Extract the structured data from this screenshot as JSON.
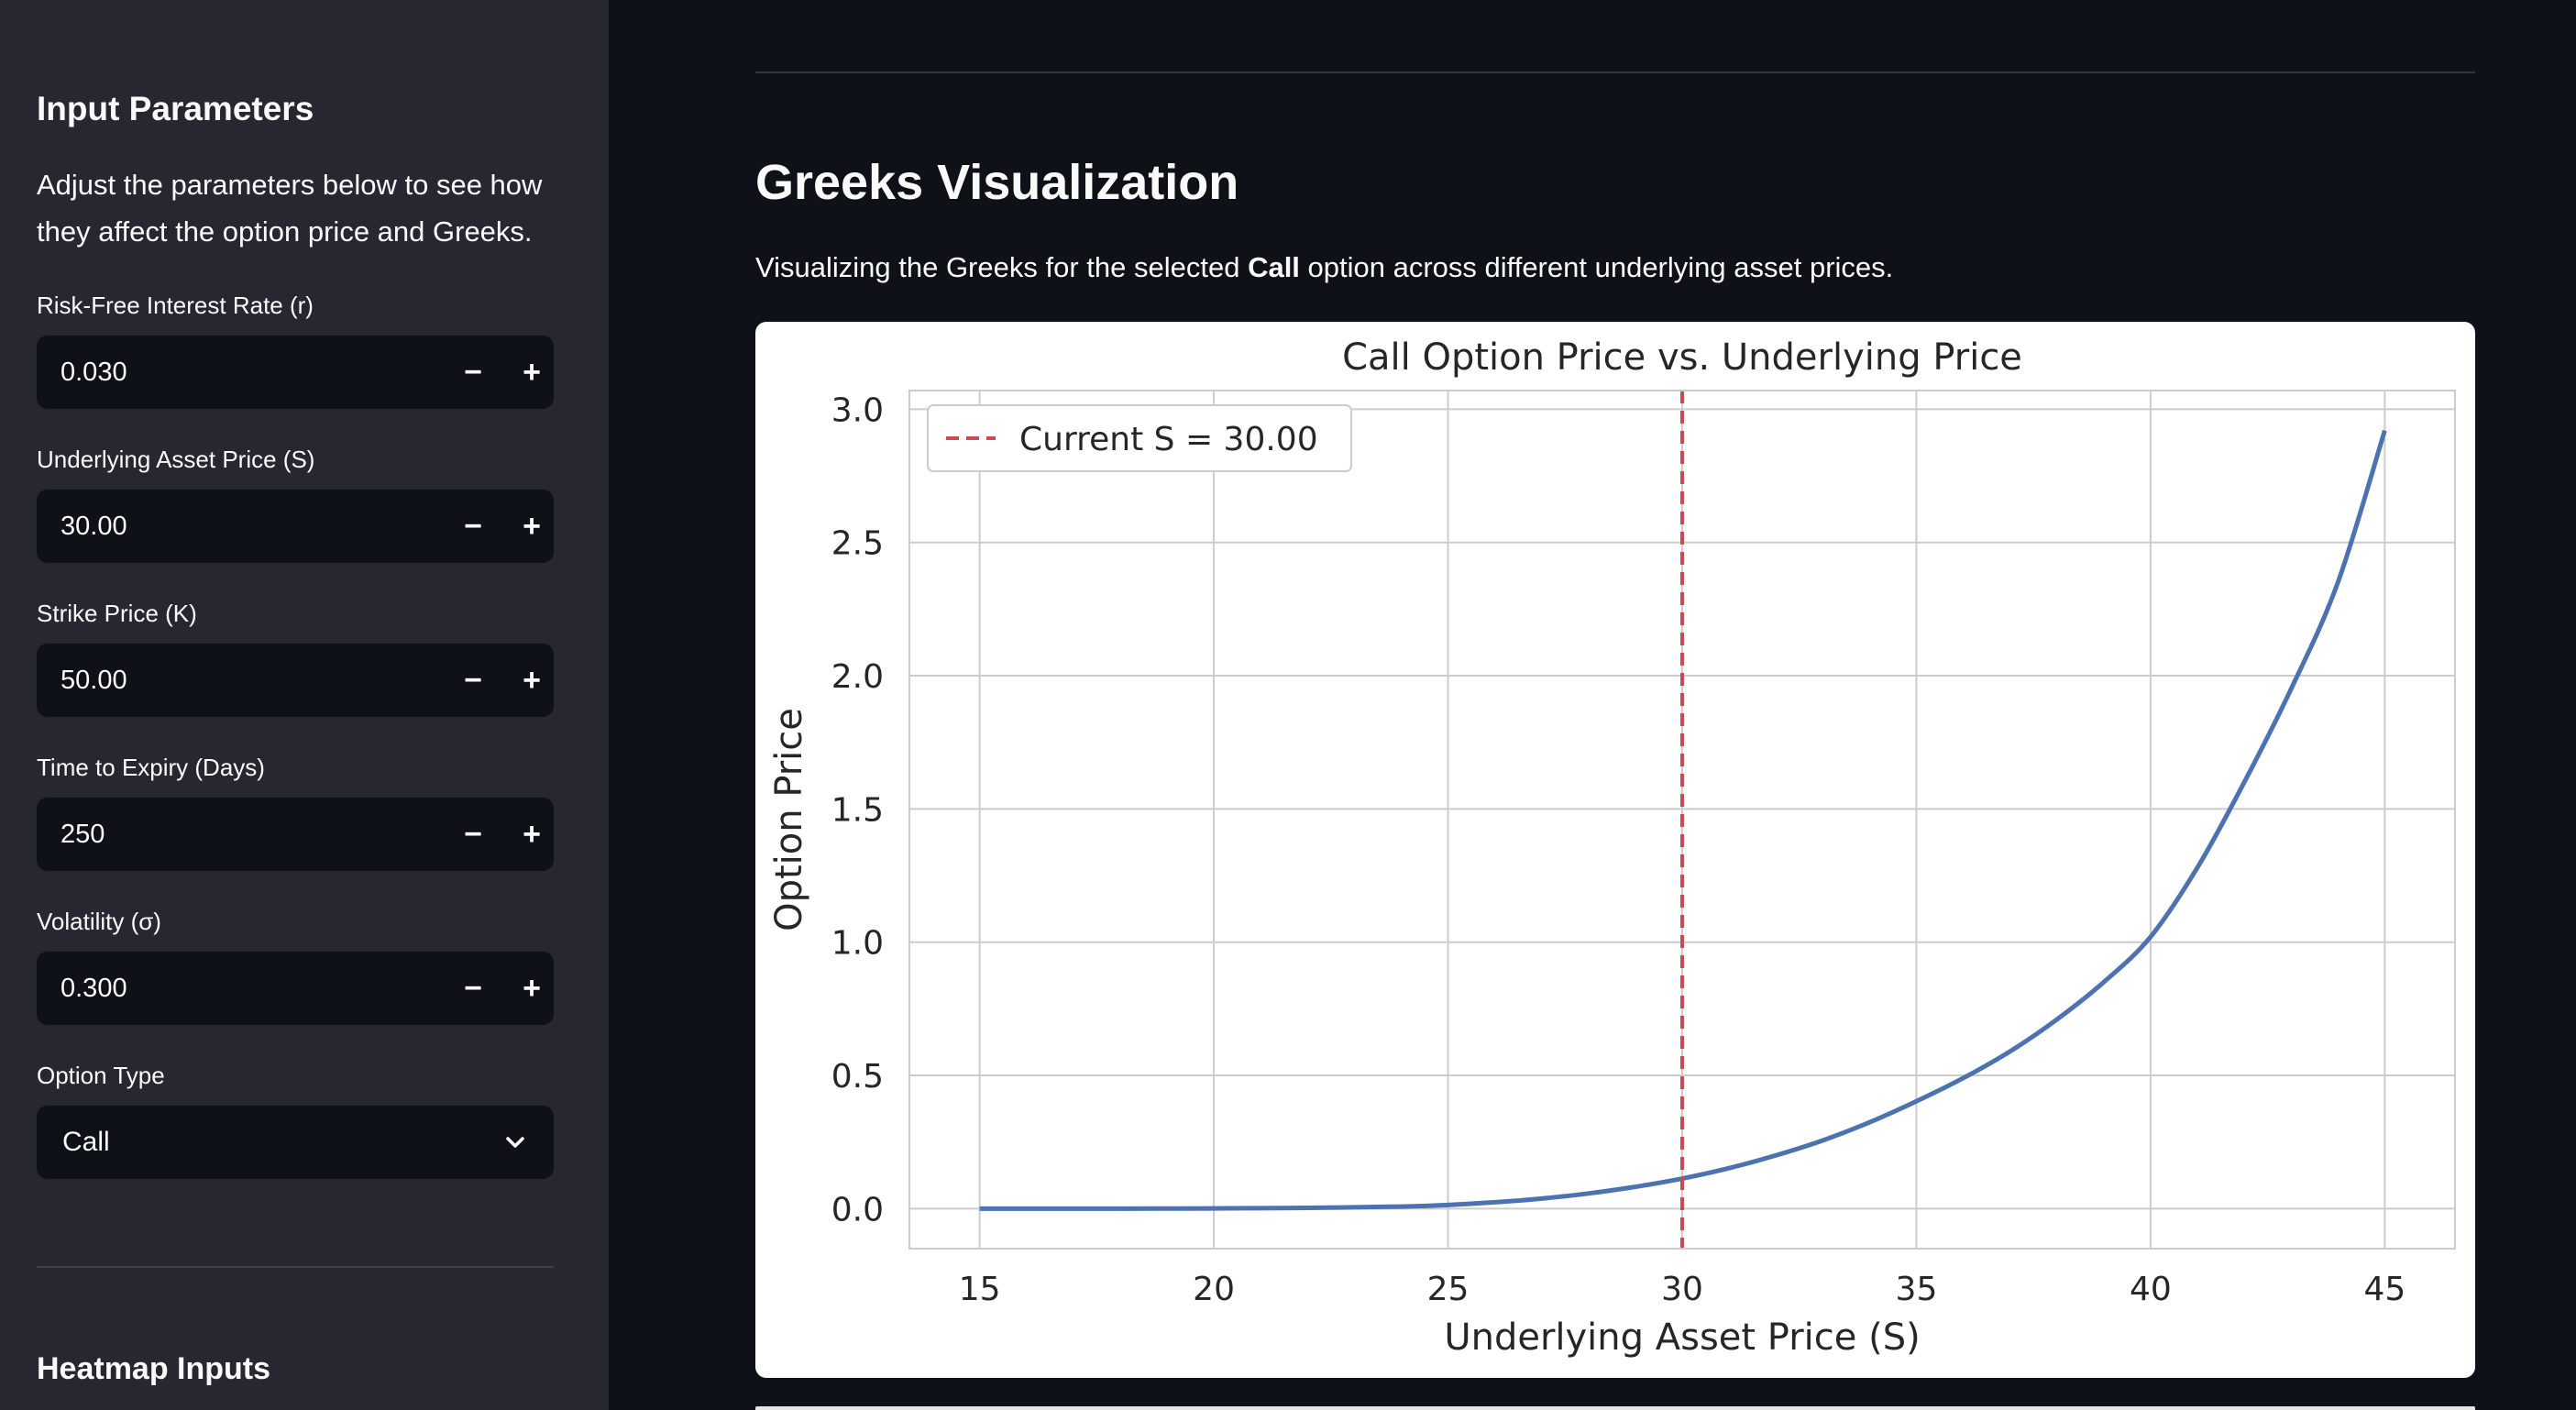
{
  "sidebar": {
    "title": "Input Parameters",
    "description": "Adjust the parameters below to see how they affect the option price and Greeks.",
    "fields": [
      {
        "label": "Risk-Free Interest Rate (r)",
        "value": "0.030"
      },
      {
        "label": "Underlying Asset Price (S)",
        "value": "30.00"
      },
      {
        "label": "Strike Price (K)",
        "value": "50.00"
      },
      {
        "label": "Time to Expiry (Days)",
        "value": "250"
      },
      {
        "label": "Volatility (σ)",
        "value": "0.300"
      }
    ],
    "minus_label": "−",
    "plus_label": "+",
    "option_type": {
      "label": "Option Type",
      "value": "Call"
    },
    "heatmap_title": "Heatmap Inputs"
  },
  "main": {
    "title": "Greeks Visualization",
    "desc_prefix": "Visualizing the Greeks for the selected ",
    "desc_bold": "Call",
    "desc_suffix": " option across different underlying asset prices."
  },
  "chart_data": {
    "type": "line",
    "title": "Call Option Price vs. Underlying Price",
    "xlabel": "Underlying Asset Price (S)",
    "ylabel": "Option Price",
    "xlim": [
      13.5,
      46.5
    ],
    "ylim": [
      -0.15,
      3.07
    ],
    "xticks": [
      15,
      20,
      25,
      30,
      35,
      40,
      45
    ],
    "yticks": [
      0.0,
      0.5,
      1.0,
      1.5,
      2.0,
      2.5,
      3.0
    ],
    "xtick_labels": [
      "15",
      "20",
      "25",
      "30",
      "35",
      "40",
      "45"
    ],
    "ytick_labels": [
      "0.0",
      "0.5",
      "1.0",
      "1.5",
      "2.0",
      "2.5",
      "3.0"
    ],
    "grid": true,
    "legend_position": "top-left",
    "series": [
      {
        "color": "#4c72b0",
        "x": [
          15,
          18,
          20,
          22,
          24,
          25,
          26,
          27,
          28,
          29,
          30,
          31,
          32,
          33,
          34,
          35,
          36,
          37,
          38,
          39,
          40,
          41,
          42,
          43,
          44,
          45
        ],
        "y": [
          0.0,
          0.0,
          0.001,
          0.003,
          0.008,
          0.014,
          0.024,
          0.038,
          0.057,
          0.082,
          0.113,
          0.152,
          0.2,
          0.256,
          0.324,
          0.403,
          0.49,
          0.59,
          0.71,
          0.85,
          1.02,
          1.28,
          1.6,
          1.95,
          2.35,
          2.92
        ]
      }
    ],
    "vline": {
      "x": 30,
      "color": "#c44e52",
      "label": "Current S = 30.00"
    }
  }
}
